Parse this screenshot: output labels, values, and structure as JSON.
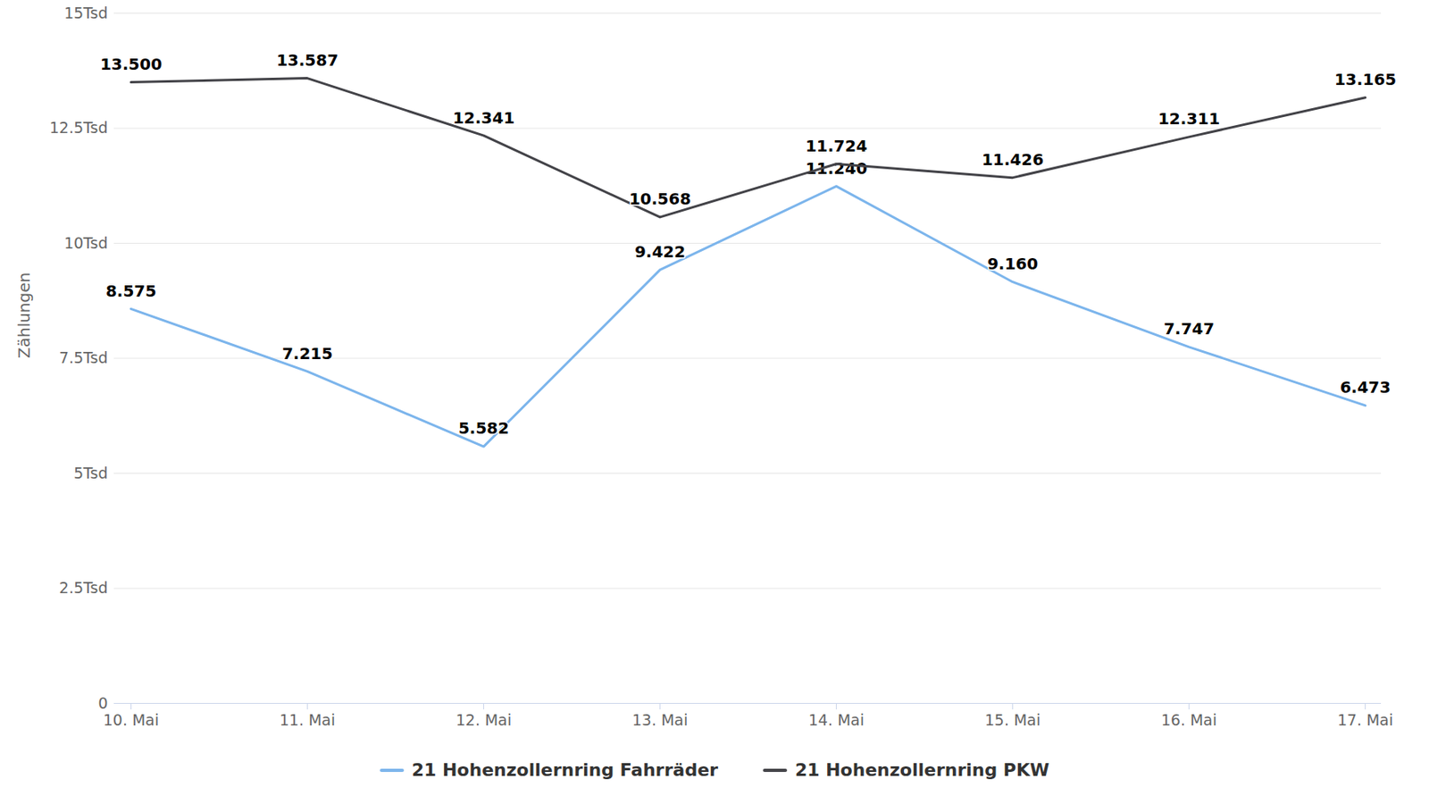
{
  "chart_data": {
    "type": "line",
    "y_label": "Zählungen",
    "categories": [
      "10. Mai",
      "11. Mai",
      "12. Mai",
      "13. Mai",
      "14. Mai",
      "15. Mai",
      "16. Mai",
      "17. Mai"
    ],
    "series": [
      {
        "name": "21 Hohenzollernring Fahrräder",
        "color": "#7cb5ec",
        "marker": "none",
        "values": [
          8575,
          7215,
          5582,
          9422,
          11240,
          9160,
          7747,
          6473
        ],
        "value_labels": [
          "8.575",
          "7.215",
          "5.582",
          "9.422",
          "11.240",
          "9.160",
          "7.747",
          "6.473"
        ]
      },
      {
        "name": "21 Hohenzollernring PKW",
        "color": "#434348",
        "marker": "none",
        "values": [
          13500,
          13587,
          12341,
          10568,
          11724,
          11426,
          12311,
          13165
        ],
        "value_labels": [
          "13.500",
          "13.587",
          "12.341",
          "10.568",
          "11.724",
          "11.426",
          "12.311",
          "13.165"
        ]
      }
    ],
    "ylim": [
      0,
      15000
    ],
    "yticks": [
      0,
      {
        "value": 2500,
        "label": "2.5Tsd"
      },
      {
        "value": 5000,
        "label": "5Tsd"
      },
      {
        "value": 7500,
        "label": "7.5Tsd"
      },
      {
        "value": 10000,
        "label": "10Tsd"
      },
      {
        "value": 12500,
        "label": "12.5Tsd"
      },
      {
        "value": 15000,
        "label": "15Tsd"
      }
    ],
    "grid": true,
    "legend": "bottom",
    "data_labels": true
  }
}
